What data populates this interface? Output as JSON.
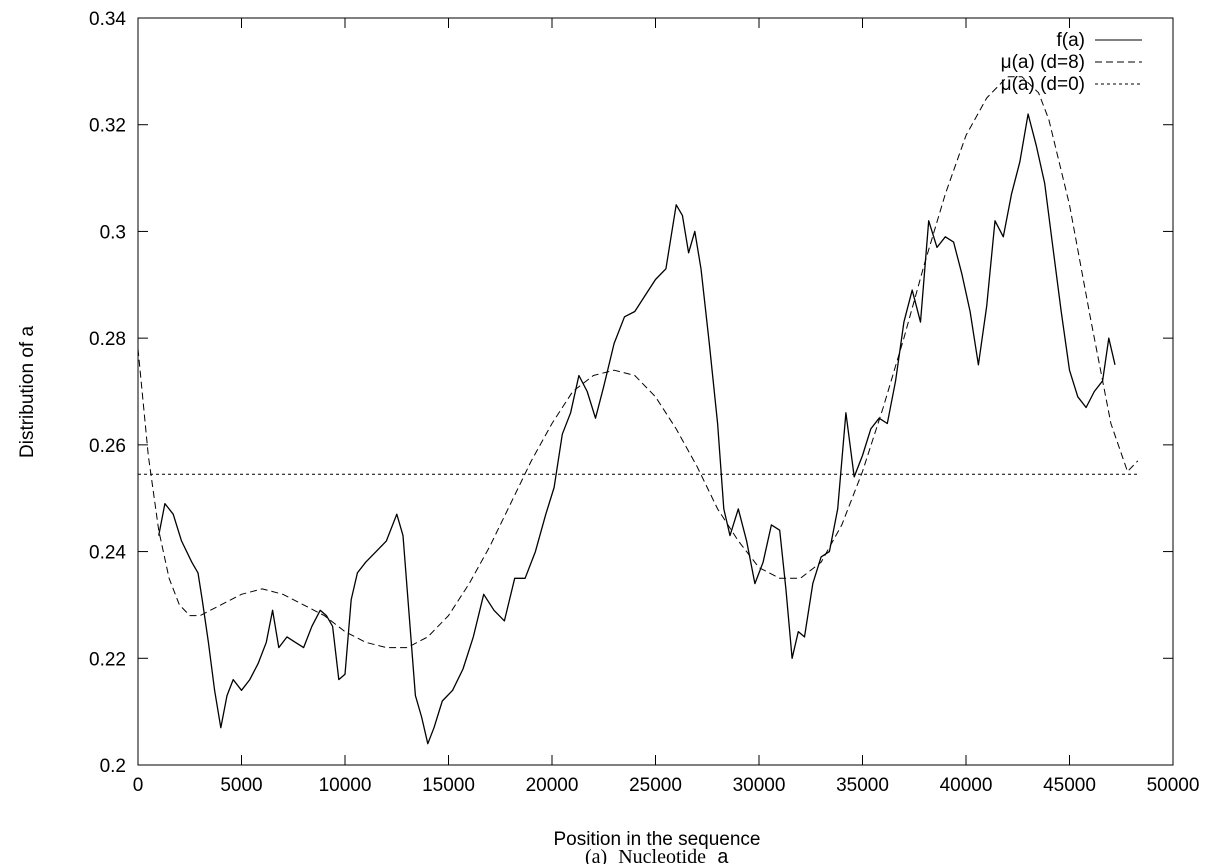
{
  "chart_data": {
    "type": "line",
    "title": "",
    "xlabel": "Position in the sequence",
    "ylabel": "Distribution of a",
    "caption_prefix": "(a)",
    "caption_text": "Nucleotide",
    "caption_symbol": "a",
    "xlim": [
      0,
      50000
    ],
    "ylim": [
      0.2,
      0.34
    ],
    "x_ticks": [
      0,
      5000,
      10000,
      15000,
      20000,
      25000,
      30000,
      35000,
      40000,
      45000,
      50000
    ],
    "x_tick_labels": [
      "0",
      "5000",
      "10000",
      "15000",
      "20000",
      "25000",
      "30000",
      "35000",
      "40000",
      "45000",
      "50000"
    ],
    "y_ticks": [
      0.2,
      0.22,
      0.24,
      0.26,
      0.28,
      0.3,
      0.32,
      0.34
    ],
    "y_tick_labels": [
      "0.2",
      "0.22",
      "0.24",
      "0.26",
      "0.28",
      "0.3",
      "0.32",
      "0.34"
    ],
    "grid": false,
    "legend_position": "top-right",
    "series": [
      {
        "name": "f(a)",
        "style": "solid",
        "x": [
          1000,
          1300,
          1700,
          2100,
          2600,
          2900,
          3100,
          3400,
          3700,
          4000,
          4300,
          4600,
          5000,
          5400,
          5800,
          6200,
          6500,
          6800,
          7200,
          7600,
          8000,
          8400,
          8800,
          9100,
          9400,
          9700,
          10000,
          10300,
          10600,
          11000,
          11500,
          12000,
          12500,
          12800,
          13100,
          13400,
          13700,
          14000,
          14300,
          14700,
          15200,
          15700,
          16200,
          16700,
          17200,
          17700,
          18200,
          18700,
          19200,
          19700,
          20100,
          20500,
          20900,
          21300,
          21700,
          22100,
          22500,
          23000,
          23500,
          24000,
          24500,
          25000,
          25500,
          26000,
          26300,
          26600,
          26900,
          27200,
          27600,
          28000,
          28300,
          28600,
          29000,
          29400,
          29800,
          30200,
          30600,
          31000,
          31300,
          31600,
          31900,
          32200,
          32600,
          33000,
          33400,
          33800,
          34200,
          34600,
          35000,
          35400,
          35800,
          36200,
          36600,
          37000,
          37400,
          37800,
          38200,
          38600,
          39000,
          39400,
          39800,
          40200,
          40600,
          41000,
          41400,
          41800,
          42200,
          42600,
          43000,
          43400,
          43800,
          44200,
          44600,
          45000,
          45400,
          45800,
          46200,
          46600,
          46900,
          47200
        ],
        "y": [
          0.243,
          0.249,
          0.247,
          0.242,
          0.238,
          0.236,
          0.231,
          0.223,
          0.214,
          0.207,
          0.213,
          0.216,
          0.214,
          0.216,
          0.219,
          0.223,
          0.229,
          0.222,
          0.224,
          0.223,
          0.222,
          0.226,
          0.229,
          0.228,
          0.226,
          0.216,
          0.217,
          0.231,
          0.236,
          0.238,
          0.24,
          0.242,
          0.247,
          0.243,
          0.228,
          0.213,
          0.209,
          0.204,
          0.207,
          0.212,
          0.214,
          0.218,
          0.224,
          0.232,
          0.229,
          0.227,
          0.235,
          0.235,
          0.24,
          0.247,
          0.252,
          0.262,
          0.266,
          0.273,
          0.27,
          0.265,
          0.271,
          0.279,
          0.284,
          0.285,
          0.288,
          0.291,
          0.293,
          0.305,
          0.303,
          0.296,
          0.3,
          0.293,
          0.279,
          0.264,
          0.248,
          0.243,
          0.248,
          0.242,
          0.234,
          0.238,
          0.245,
          0.244,
          0.233,
          0.22,
          0.225,
          0.224,
          0.234,
          0.239,
          0.24,
          0.248,
          0.266,
          0.254,
          0.258,
          0.263,
          0.265,
          0.264,
          0.272,
          0.283,
          0.289,
          0.283,
          0.302,
          0.297,
          0.299,
          0.298,
          0.292,
          0.285,
          0.275,
          0.286,
          0.302,
          0.299,
          0.307,
          0.313,
          0.322,
          0.316,
          0.309,
          0.297,
          0.285,
          0.274,
          0.269,
          0.267,
          0.27,
          0.272,
          0.28,
          0.275
        ],
        "stroke": "#000000"
      },
      {
        "name": "μ(a) (d=8)",
        "style": "dashed",
        "x": [
          0,
          500,
          1000,
          1500,
          2000,
          2500,
          3000,
          4000,
          5000,
          6000,
          7000,
          8000,
          9000,
          10000,
          11000,
          12000,
          13000,
          14000,
          15000,
          16000,
          17000,
          18000,
          19000,
          20000,
          21000,
          22000,
          23000,
          24000,
          25000,
          26000,
          27000,
          28000,
          29000,
          30000,
          31000,
          32000,
          33000,
          34000,
          35000,
          36000,
          37000,
          38000,
          39000,
          40000,
          41000,
          42000,
          42700,
          43500,
          44000,
          45000,
          46000,
          47000,
          47800,
          48300
        ],
        "y": [
          0.278,
          0.258,
          0.244,
          0.235,
          0.23,
          0.228,
          0.228,
          0.23,
          0.232,
          0.233,
          0.232,
          0.23,
          0.228,
          0.225,
          0.223,
          0.222,
          0.222,
          0.224,
          0.228,
          0.234,
          0.241,
          0.249,
          0.257,
          0.264,
          0.27,
          0.273,
          0.274,
          0.273,
          0.269,
          0.263,
          0.256,
          0.248,
          0.242,
          0.237,
          0.235,
          0.235,
          0.238,
          0.245,
          0.255,
          0.267,
          0.28,
          0.294,
          0.307,
          0.318,
          0.325,
          0.329,
          0.329,
          0.326,
          0.321,
          0.305,
          0.284,
          0.264,
          0.255,
          0.257
        ],
        "stroke": "#000000"
      },
      {
        "name": "μ(a) (d=0)",
        "style": "dotted",
        "x": [
          0,
          48300
        ],
        "y": [
          0.2545,
          0.2545
        ],
        "stroke": "#000000"
      }
    ]
  }
}
